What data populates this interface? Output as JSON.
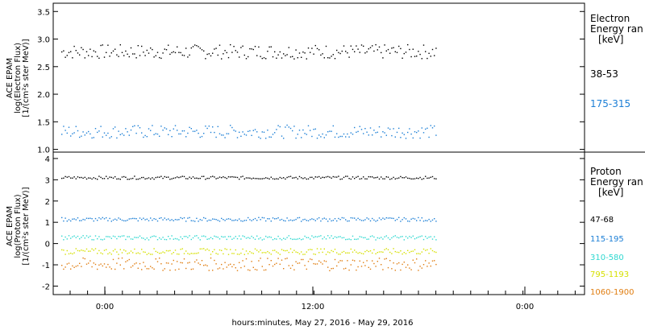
{
  "chart_data": [
    {
      "type": "scatter",
      "panel": "electron",
      "ylabel": [
        "ACE EPAM",
        "log(Electron Flux)",
        "[1/(cm²s ster MeV)]"
      ],
      "yticks": [
        "1.0",
        "1.5",
        "2.0",
        "2.5",
        "3.0",
        "3.5"
      ],
      "ylim": [
        0.95,
        3.65
      ],
      "legend_header": [
        "Electron",
        "Energy ran",
        "[keV]"
      ],
      "series": [
        {
          "name": "38-53",
          "color": "#000000",
          "center": 2.78,
          "spread": 0.13
        },
        {
          "name": "175-315",
          "color": "#1c7fd6",
          "center": 1.33,
          "spread": 0.12
        }
      ],
      "series_visible_through_x": 0.72
    },
    {
      "type": "scatter",
      "panel": "proton",
      "ylabel": [
        "ACE EPAM",
        "log(Proton Flux)",
        "[1/(cm²s ster MeV)]"
      ],
      "yticks": [
        "-2",
        "-1",
        "0",
        "1",
        "2",
        "3",
        "4"
      ],
      "ylim": [
        -2.4,
        4.3
      ],
      "legend_header": [
        "Proton",
        "Energy ran",
        "[keV]"
      ],
      "series": [
        {
          "name": "47-68",
          "color": "#000000",
          "center": 3.12,
          "spread": 0.07
        },
        {
          "name": "115-195",
          "color": "#1c7fd6",
          "center": 1.16,
          "spread": 0.09
        },
        {
          "name": "310-580",
          "color": "#2fd8d0",
          "center": 0.3,
          "spread": 0.1
        },
        {
          "name": "795-1193",
          "color": "#d6e000",
          "center": -0.35,
          "spread": 0.14
        },
        {
          "name": "1060-1900",
          "color": "#e07d10",
          "center": -0.95,
          "spread": 0.3
        }
      ],
      "series_visible_through_x": 0.72
    }
  ],
  "x_axis": {
    "tick_labels": [
      "0:00",
      "12:00",
      "0:00"
    ],
    "xlabel": "hours:minutes, May 27, 2016 - May 29, 2016"
  }
}
